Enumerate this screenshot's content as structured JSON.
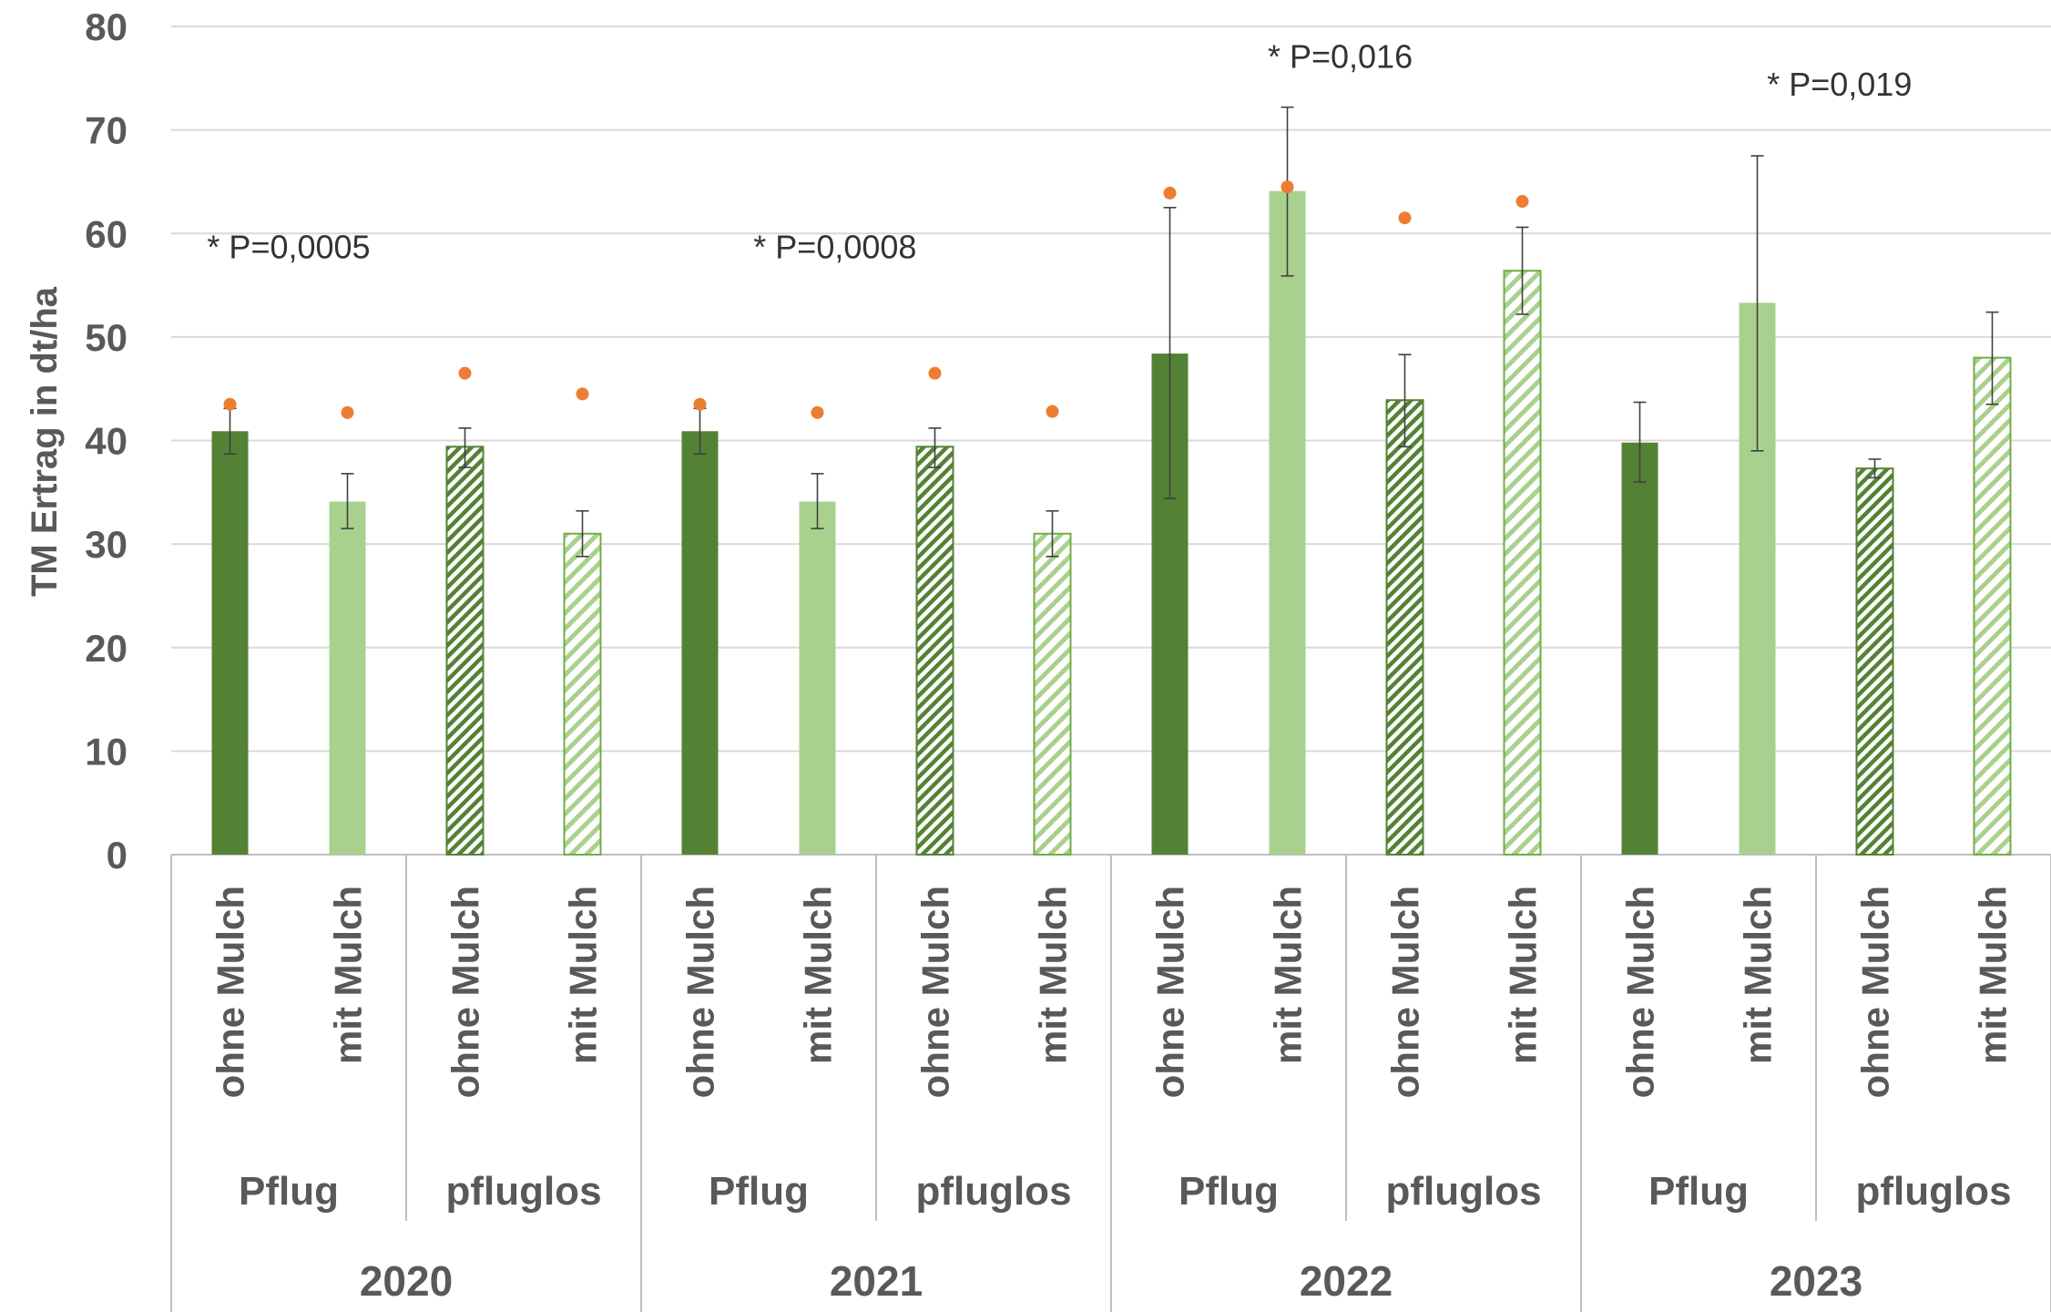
{
  "chart_data": {
    "type": "bar",
    "ylabel": "TM Ertrag in dt/ha",
    "ylim": [
      0,
      80
    ],
    "yticks": [
      0,
      10,
      20,
      30,
      40,
      50,
      60,
      70,
      80
    ],
    "grid": true,
    "legend": "none",
    "years": [
      "2020",
      "2021",
      "2022",
      "2023"
    ],
    "tillage": [
      "Pflug",
      "pfluglos"
    ],
    "mulch": [
      "ohne Mulch",
      "mit Mulch"
    ],
    "colors": {
      "ohne_mulch": "#548235",
      "mit_mulch": "#a9d18e",
      "dot": "#ed7d31",
      "grid": "#d9d9d9",
      "axis": "#bfbfbf",
      "text": "#595959"
    },
    "bars": [
      {
        "year": "2020",
        "tillage": "Pflug",
        "mulch": "ohne Mulch",
        "value": 40.9,
        "err": [
          38.7,
          43.1
        ],
        "dot": 43.5
      },
      {
        "year": "2020",
        "tillage": "Pflug",
        "mulch": "mit Mulch",
        "value": 34.1,
        "err": [
          31.5,
          36.8
        ],
        "dot": 42.7
      },
      {
        "year": "2020",
        "tillage": "pfluglos",
        "mulch": "ohne Mulch",
        "value": 39.4,
        "err": [
          37.4,
          41.2
        ],
        "dot": 46.5
      },
      {
        "year": "2020",
        "tillage": "pfluglos",
        "mulch": "mit Mulch",
        "value": 31.0,
        "err": [
          28.8,
          33.2
        ],
        "dot": 44.5
      },
      {
        "year": "2021",
        "tillage": "Pflug",
        "mulch": "ohne Mulch",
        "value": 40.9,
        "err": [
          38.7,
          43.1
        ],
        "dot": 43.5
      },
      {
        "year": "2021",
        "tillage": "Pflug",
        "mulch": "mit Mulch",
        "value": 34.1,
        "err": [
          31.5,
          36.8
        ],
        "dot": 42.7
      },
      {
        "year": "2021",
        "tillage": "pfluglos",
        "mulch": "ohne Mulch",
        "value": 39.4,
        "err": [
          37.4,
          41.2
        ],
        "dot": 46.5
      },
      {
        "year": "2021",
        "tillage": "pfluglos",
        "mulch": "mit Mulch",
        "value": 31.0,
        "err": [
          28.8,
          33.2
        ],
        "dot": 42.8
      },
      {
        "year": "2022",
        "tillage": "Pflug",
        "mulch": "ohne Mulch",
        "value": 48.4,
        "err": [
          34.4,
          62.5
        ],
        "dot": 63.9
      },
      {
        "year": "2022",
        "tillage": "Pflug",
        "mulch": "mit Mulch",
        "value": 64.1,
        "err": [
          55.9,
          72.2
        ],
        "dot": 64.5
      },
      {
        "year": "2022",
        "tillage": "pfluglos",
        "mulch": "ohne Mulch",
        "value": 43.9,
        "err": [
          39.4,
          48.3
        ],
        "dot": 61.5
      },
      {
        "year": "2022",
        "tillage": "pfluglos",
        "mulch": "mit Mulch",
        "value": 56.4,
        "err": [
          52.2,
          60.6
        ],
        "dot": 63.1
      },
      {
        "year": "2023",
        "tillage": "Pflug",
        "mulch": "ohne Mulch",
        "value": 39.8,
        "err": [
          36.0,
          43.7
        ],
        "dot": null
      },
      {
        "year": "2023",
        "tillage": "Pflug",
        "mulch": "mit Mulch",
        "value": 53.3,
        "err": [
          39.0,
          67.5
        ],
        "dot": null
      },
      {
        "year": "2023",
        "tillage": "pfluglos",
        "mulch": "ohne Mulch",
        "value": 37.3,
        "err": [
          36.4,
          38.2
        ],
        "dot": null
      },
      {
        "year": "2023",
        "tillage": "pfluglos",
        "mulch": "mit Mulch",
        "value": 48.0,
        "err": [
          43.5,
          52.4
        ],
        "dot": null
      }
    ],
    "annotations": [
      {
        "text": "* P=0,0005",
        "category_index": 0.5,
        "y": 57.6
      },
      {
        "text": "* P=0,0008",
        "category_index": 5.15,
        "y": 57.6
      },
      {
        "text": "* P=0,016",
        "category_index": 9.45,
        "y": 76.0
      },
      {
        "text": "* P=0,019",
        "category_index": 13.7,
        "y": 73.3
      }
    ]
  }
}
